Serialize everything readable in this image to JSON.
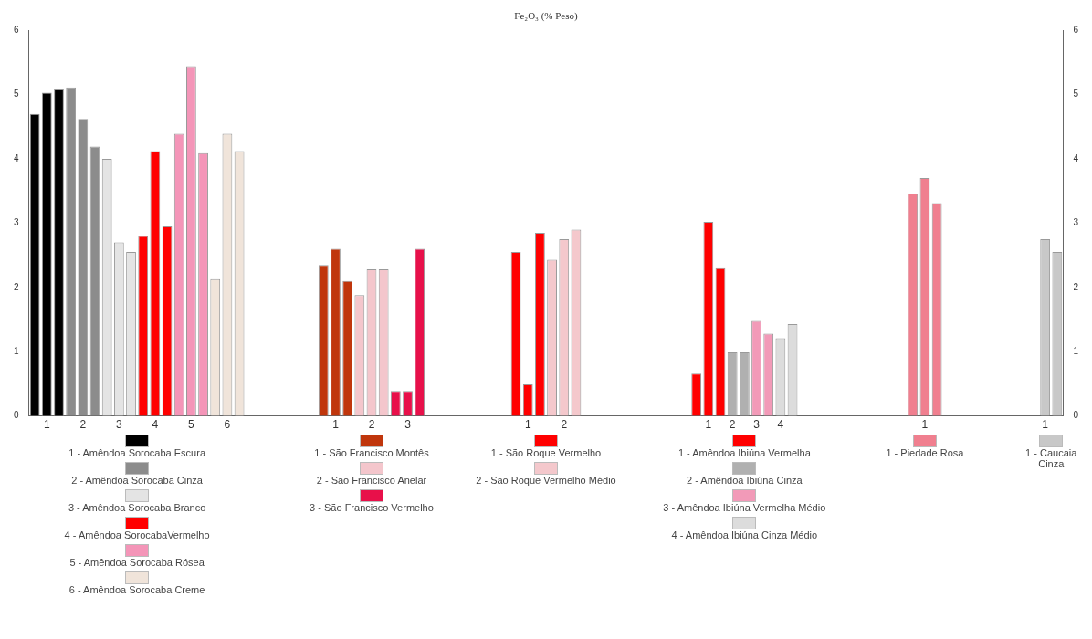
{
  "chart_data": {
    "type": "bar",
    "title": "Fe₂O₃ (% Peso)",
    "categories": [
      null,
      "1",
      null,
      null,
      "2",
      null,
      null,
      "3",
      null,
      null,
      "4",
      null,
      null,
      "5",
      null,
      null,
      "6",
      null,
      null,
      null,
      null,
      null,
      null,
      null,
      null,
      "1",
      null,
      null,
      "2",
      null,
      null,
      "3",
      null,
      null,
      null,
      null,
      null,
      null,
      null,
      null,
      null,
      "1",
      null,
      null,
      "2",
      null,
      null,
      null,
      null,
      null,
      null,
      null,
      null,
      null,
      null,
      null,
      "1",
      null,
      "2",
      null,
      "3",
      null,
      "4",
      null,
      null,
      null,
      null,
      null,
      null,
      null,
      null,
      null,
      null,
      null,
      "1",
      null,
      null,
      null,
      null,
      null,
      null,
      null,
      null,
      null,
      "1",
      null
    ],
    "series": [
      {
        "name": "1 - Amêndoa Sorocaba Escura",
        "color": "#000000",
        "values": [
          4.7,
          5.03,
          5.08,
          null,
          null,
          null,
          null,
          null,
          null,
          null,
          null,
          null,
          null,
          null,
          null,
          null,
          null,
          null,
          null,
          null,
          null,
          null,
          null,
          null,
          null,
          null,
          null,
          null,
          null,
          null,
          null,
          null,
          null,
          null,
          null,
          null,
          null,
          null,
          null,
          null,
          null,
          null,
          null,
          null,
          null,
          null,
          null,
          null,
          null,
          null,
          null,
          null,
          null,
          null,
          null,
          null,
          null,
          null,
          null,
          null,
          null,
          null,
          null,
          null,
          null,
          null,
          null,
          null,
          null,
          null,
          null,
          null,
          null,
          null,
          null,
          null,
          null,
          null,
          null,
          null,
          null,
          null,
          null,
          null,
          null,
          null
        ]
      },
      {
        "name": "2 - Amêndoa Sorocaba Cinza",
        "color": "#8c8c8c",
        "values": [
          null,
          null,
          null,
          5.11,
          4.62,
          4.19,
          null,
          null,
          null,
          null,
          null,
          null,
          null,
          null,
          null,
          null,
          null,
          null,
          null,
          null,
          null,
          null,
          null,
          null,
          null,
          null,
          null,
          null,
          null,
          null,
          null,
          null,
          null,
          null,
          null,
          null,
          null,
          null,
          null,
          null,
          null,
          null,
          null,
          null,
          null,
          null,
          null,
          null,
          null,
          null,
          null,
          null,
          null,
          null,
          null,
          null,
          null,
          null,
          null,
          null,
          null,
          null,
          null,
          null,
          null,
          null,
          null,
          null,
          null,
          null,
          null,
          null,
          null,
          null,
          null,
          null,
          null,
          null,
          null,
          null,
          null,
          null,
          null,
          null,
          null,
          null
        ]
      },
      {
        "name": "3 - Amêndoa Sorocaba Branco",
        "color": "#e4e4e4",
        "values": [
          null,
          null,
          null,
          null,
          null,
          null,
          4.0,
          2.7,
          2.55,
          null,
          null,
          null,
          null,
          null,
          null,
          null,
          null,
          null,
          null,
          null,
          null,
          null,
          null,
          null,
          null,
          null,
          null,
          null,
          null,
          null,
          null,
          null,
          null,
          null,
          null,
          null,
          null,
          null,
          null,
          null,
          null,
          null,
          null,
          null,
          null,
          null,
          null,
          null,
          null,
          null,
          null,
          null,
          null,
          null,
          null,
          null,
          null,
          null,
          null,
          null,
          null,
          null,
          null,
          null,
          null,
          null,
          null,
          null,
          null,
          null,
          null,
          null,
          null,
          null,
          null,
          null,
          null,
          null,
          null,
          null,
          null,
          null,
          null,
          null,
          null,
          null
        ]
      },
      {
        "name": "4 - Amêndoa SorocabaVermelho",
        "color": "#ff0000",
        "values": [
          null,
          null,
          null,
          null,
          null,
          null,
          null,
          null,
          null,
          2.8,
          4.12,
          2.95,
          null,
          null,
          null,
          null,
          null,
          null,
          null,
          null,
          null,
          null,
          null,
          null,
          null,
          null,
          null,
          null,
          null,
          null,
          null,
          null,
          null,
          null,
          null,
          null,
          null,
          null,
          null,
          null,
          null,
          null,
          null,
          null,
          null,
          null,
          null,
          null,
          null,
          null,
          null,
          null,
          null,
          null,
          null,
          null,
          null,
          null,
          null,
          null,
          null,
          null,
          null,
          null,
          null,
          null,
          null,
          null,
          null,
          null,
          null,
          null,
          null,
          null,
          null,
          null,
          null,
          null,
          null,
          null,
          null,
          null,
          null,
          null,
          null,
          null
        ]
      },
      {
        "name": "5 - Amêndoa Sorocaba Rósea",
        "color": "#f495b8",
        "values": [
          null,
          null,
          null,
          null,
          null,
          null,
          null,
          null,
          null,
          null,
          null,
          null,
          4.39,
          5.44,
          4.09,
          null,
          null,
          null,
          null,
          null,
          null,
          null,
          null,
          null,
          null,
          null,
          null,
          null,
          null,
          null,
          null,
          null,
          null,
          null,
          null,
          null,
          null,
          null,
          null,
          null,
          null,
          null,
          null,
          null,
          null,
          null,
          null,
          null,
          null,
          null,
          null,
          null,
          null,
          null,
          null,
          null,
          null,
          null,
          null,
          null,
          null,
          null,
          null,
          null,
          null,
          null,
          null,
          null,
          null,
          null,
          null,
          null,
          null,
          null,
          null,
          null,
          null,
          null,
          null,
          null,
          null,
          null,
          null,
          null,
          null,
          null
        ]
      },
      {
        "name": "6 - Amêndoa Sorocaba Creme",
        "color": "#f0e4da",
        "values": [
          null,
          null,
          null,
          null,
          null,
          null,
          null,
          null,
          null,
          null,
          null,
          null,
          null,
          null,
          null,
          2.13,
          4.39,
          4.12,
          null,
          null,
          null,
          null,
          null,
          null,
          null,
          null,
          null,
          null,
          null,
          null,
          null,
          null,
          null,
          null,
          null,
          null,
          null,
          null,
          null,
          null,
          null,
          null,
          null,
          null,
          null,
          null,
          null,
          null,
          null,
          null,
          null,
          null,
          null,
          null,
          null,
          null,
          null,
          null,
          null,
          null,
          null,
          null,
          null,
          null,
          null,
          null,
          null,
          null,
          null,
          null,
          null,
          null,
          null,
          null,
          null,
          null,
          null,
          null,
          null,
          null,
          null,
          null,
          null,
          null,
          null,
          null
        ]
      },
      {
        "name": "1 - São Francisco Montês",
        "color": "#c0360c",
        "values": [
          null,
          null,
          null,
          null,
          null,
          null,
          null,
          null,
          null,
          null,
          null,
          null,
          null,
          null,
          null,
          null,
          null,
          null,
          null,
          null,
          null,
          null,
          null,
          null,
          2.35,
          2.6,
          2.1,
          null,
          null,
          null,
          null,
          null,
          null,
          null,
          null,
          null,
          null,
          null,
          null,
          null,
          null,
          null,
          null,
          null,
          null,
          null,
          null,
          null,
          null,
          null,
          null,
          null,
          null,
          null,
          null,
          null,
          null,
          null,
          null,
          null,
          null,
          null,
          null,
          null,
          null,
          null,
          null,
          null,
          null,
          null,
          null,
          null,
          null,
          null,
          null,
          null,
          null,
          null,
          null,
          null,
          null,
          null,
          null,
          null,
          null,
          null
        ]
      },
      {
        "name": "2 - São Francisco Anelar",
        "color": "#f4c6cc",
        "values": [
          null,
          null,
          null,
          null,
          null,
          null,
          null,
          null,
          null,
          null,
          null,
          null,
          null,
          null,
          null,
          null,
          null,
          null,
          null,
          null,
          null,
          null,
          null,
          null,
          null,
          null,
          null,
          1.88,
          2.28,
          2.28,
          null,
          null,
          null,
          null,
          null,
          null,
          null,
          null,
          null,
          null,
          null,
          null,
          null,
          null,
          null,
          null,
          null,
          null,
          null,
          null,
          null,
          null,
          null,
          null,
          null,
          null,
          null,
          null,
          null,
          null,
          null,
          null,
          null,
          null,
          null,
          null,
          null,
          null,
          null,
          null,
          null,
          null,
          null,
          null,
          null,
          null,
          null,
          null,
          null,
          null,
          null,
          null,
          null,
          null,
          null,
          null
        ]
      },
      {
        "name": "3 - São Francisco Vermelho",
        "color": "#e8104a",
        "values": [
          null,
          null,
          null,
          null,
          null,
          null,
          null,
          null,
          null,
          null,
          null,
          null,
          null,
          null,
          null,
          null,
          null,
          null,
          null,
          null,
          null,
          null,
          null,
          null,
          null,
          null,
          null,
          null,
          null,
          null,
          0.39,
          0.39,
          2.6,
          null,
          null,
          null,
          null,
          null,
          null,
          null,
          null,
          null,
          null,
          null,
          null,
          null,
          null,
          null,
          null,
          null,
          null,
          null,
          null,
          null,
          null,
          null,
          null,
          null,
          null,
          null,
          null,
          null,
          null,
          null,
          null,
          null,
          null,
          null,
          null,
          null,
          null,
          null,
          null,
          null,
          null,
          null,
          null,
          null,
          null,
          null,
          null,
          null,
          null,
          null,
          null,
          null
        ]
      },
      {
        "name": "1 - São Roque Vermelho",
        "color": "#ff0000",
        "values": [
          null,
          null,
          null,
          null,
          null,
          null,
          null,
          null,
          null,
          null,
          null,
          null,
          null,
          null,
          null,
          null,
          null,
          null,
          null,
          null,
          null,
          null,
          null,
          null,
          null,
          null,
          null,
          null,
          null,
          null,
          null,
          null,
          null,
          null,
          null,
          null,
          null,
          null,
          null,
          null,
          2.55,
          0.49,
          2.85,
          null,
          null,
          null,
          null,
          null,
          null,
          null,
          null,
          null,
          null,
          null,
          null,
          null,
          null,
          null,
          null,
          null,
          null,
          null,
          null,
          null,
          null,
          null,
          null,
          null,
          null,
          null,
          null,
          null,
          null,
          null,
          null,
          null,
          null,
          null,
          null,
          null,
          null,
          null,
          null,
          null,
          null,
          null
        ]
      },
      {
        "name": "2 - São Roque Vermelho Médio",
        "color": "#f4c8cc",
        "values": [
          null,
          null,
          null,
          null,
          null,
          null,
          null,
          null,
          null,
          null,
          null,
          null,
          null,
          null,
          null,
          null,
          null,
          null,
          null,
          null,
          null,
          null,
          null,
          null,
          null,
          null,
          null,
          null,
          null,
          null,
          null,
          null,
          null,
          null,
          null,
          null,
          null,
          null,
          null,
          null,
          null,
          null,
          null,
          2.43,
          2.75,
          2.9,
          null,
          null,
          null,
          null,
          null,
          null,
          null,
          null,
          null,
          null,
          null,
          null,
          null,
          null,
          null,
          null,
          null,
          null,
          null,
          null,
          null,
          null,
          null,
          null,
          null,
          null,
          null,
          null,
          null,
          null,
          null,
          null,
          null,
          null,
          null,
          null,
          null,
          null,
          null,
          null
        ]
      },
      {
        "name": "1 - Amêndoa Ibiúna Vermelha",
        "color": "#ff0000",
        "values": [
          null,
          null,
          null,
          null,
          null,
          null,
          null,
          null,
          null,
          null,
          null,
          null,
          null,
          null,
          null,
          null,
          null,
          null,
          null,
          null,
          null,
          null,
          null,
          null,
          null,
          null,
          null,
          null,
          null,
          null,
          null,
          null,
          null,
          null,
          null,
          null,
          null,
          null,
          null,
          null,
          null,
          null,
          null,
          null,
          null,
          null,
          null,
          null,
          null,
          null,
          null,
          null,
          null,
          null,
          null,
          0.66,
          3.02,
          2.3,
          null,
          null,
          null,
          null,
          null,
          null,
          null,
          null,
          null,
          null,
          null,
          null,
          null,
          null,
          null,
          null,
          null,
          null,
          null,
          null,
          null,
          null,
          null,
          null,
          null,
          null,
          null,
          null
        ]
      },
      {
        "name": "2 - Amêndoa Ibiúna Cinza",
        "color": "#b0b0b0",
        "values": [
          null,
          null,
          null,
          null,
          null,
          null,
          null,
          null,
          null,
          null,
          null,
          null,
          null,
          null,
          null,
          null,
          null,
          null,
          null,
          null,
          null,
          null,
          null,
          null,
          null,
          null,
          null,
          null,
          null,
          null,
          null,
          null,
          null,
          null,
          null,
          null,
          null,
          null,
          null,
          null,
          null,
          null,
          null,
          null,
          null,
          null,
          null,
          null,
          null,
          null,
          null,
          null,
          null,
          null,
          null,
          null,
          null,
          null,
          0.99,
          0.99,
          null,
          null,
          null,
          null,
          null,
          null,
          null,
          null,
          null,
          null,
          null,
          null,
          null,
          null,
          null,
          null,
          null,
          null,
          null,
          null,
          null,
          null,
          null,
          null,
          null,
          null
        ]
      },
      {
        "name": "3 - Amêndoa Ibiúna Vermelha Médio",
        "color": "#f29ab8",
        "values": [
          null,
          null,
          null,
          null,
          null,
          null,
          null,
          null,
          null,
          null,
          null,
          null,
          null,
          null,
          null,
          null,
          null,
          null,
          null,
          null,
          null,
          null,
          null,
          null,
          null,
          null,
          null,
          null,
          null,
          null,
          null,
          null,
          null,
          null,
          null,
          null,
          null,
          null,
          null,
          null,
          null,
          null,
          null,
          null,
          null,
          null,
          null,
          null,
          null,
          null,
          null,
          null,
          null,
          null,
          null,
          null,
          null,
          null,
          null,
          null,
          1.48,
          1.28,
          null,
          null,
          null,
          null,
          null,
          null,
          null,
          null,
          null,
          null,
          null,
          null,
          null,
          null,
          null,
          null,
          null,
          null,
          null,
          null,
          null,
          null,
          null,
          null
        ]
      },
      {
        "name": "4 - Amêndoa Ibiúna Cinza Médio",
        "color": "#dcdcdc",
        "values": [
          null,
          null,
          null,
          null,
          null,
          null,
          null,
          null,
          null,
          null,
          null,
          null,
          null,
          null,
          null,
          null,
          null,
          null,
          null,
          null,
          null,
          null,
          null,
          null,
          null,
          null,
          null,
          null,
          null,
          null,
          null,
          null,
          null,
          null,
          null,
          null,
          null,
          null,
          null,
          null,
          null,
          null,
          null,
          null,
          null,
          null,
          null,
          null,
          null,
          null,
          null,
          null,
          null,
          null,
          null,
          null,
          null,
          null,
          null,
          null,
          null,
          null,
          1.21,
          1.43,
          null,
          null,
          null,
          null,
          null,
          null,
          null,
          null,
          null,
          null,
          null,
          null,
          null,
          null,
          null,
          null,
          null,
          null,
          null,
          null,
          null,
          null
        ]
      },
      {
        "name": "1 - Piedade Rosa",
        "color": "#f07f8f",
        "values": [
          null,
          null,
          null,
          null,
          null,
          null,
          null,
          null,
          null,
          null,
          null,
          null,
          null,
          null,
          null,
          null,
          null,
          null,
          null,
          null,
          null,
          null,
          null,
          null,
          null,
          null,
          null,
          null,
          null,
          null,
          null,
          null,
          null,
          null,
          null,
          null,
          null,
          null,
          null,
          null,
          null,
          null,
          null,
          null,
          null,
          null,
          null,
          null,
          null,
          null,
          null,
          null,
          null,
          null,
          null,
          null,
          null,
          null,
          null,
          null,
          null,
          null,
          null,
          null,
          null,
          null,
          null,
          null,
          null,
          null,
          null,
          null,
          null,
          3.46,
          3.7,
          3.31,
          null,
          null,
          null,
          null,
          null,
          null,
          null,
          null,
          null,
          null
        ]
      },
      {
        "name": "1 - Caucaia Cinza",
        "color": "#c8c8c8",
        "values": [
          null,
          null,
          null,
          null,
          null,
          null,
          null,
          null,
          null,
          null,
          null,
          null,
          null,
          null,
          null,
          null,
          null,
          null,
          null,
          null,
          null,
          null,
          null,
          null,
          null,
          null,
          null,
          null,
          null,
          null,
          null,
          null,
          null,
          null,
          null,
          null,
          null,
          null,
          null,
          null,
          null,
          null,
          null,
          null,
          null,
          null,
          null,
          null,
          null,
          null,
          null,
          null,
          null,
          null,
          null,
          null,
          null,
          null,
          null,
          null,
          null,
          null,
          null,
          null,
          null,
          null,
          null,
          null,
          null,
          null,
          null,
          null,
          null,
          null,
          null,
          null,
          null,
          null,
          null,
          null,
          null,
          null,
          null,
          null,
          2.75,
          2.55
        ]
      }
    ],
    "ylim": [
      0,
      6
    ],
    "yticks": [
      0,
      1,
      2,
      3,
      4,
      5,
      6
    ],
    "y2lim": [
      0,
      6
    ],
    "y2ticks": [
      0,
      1,
      2,
      3,
      4,
      5,
      6
    ],
    "grid": false,
    "legend": "bottom"
  }
}
